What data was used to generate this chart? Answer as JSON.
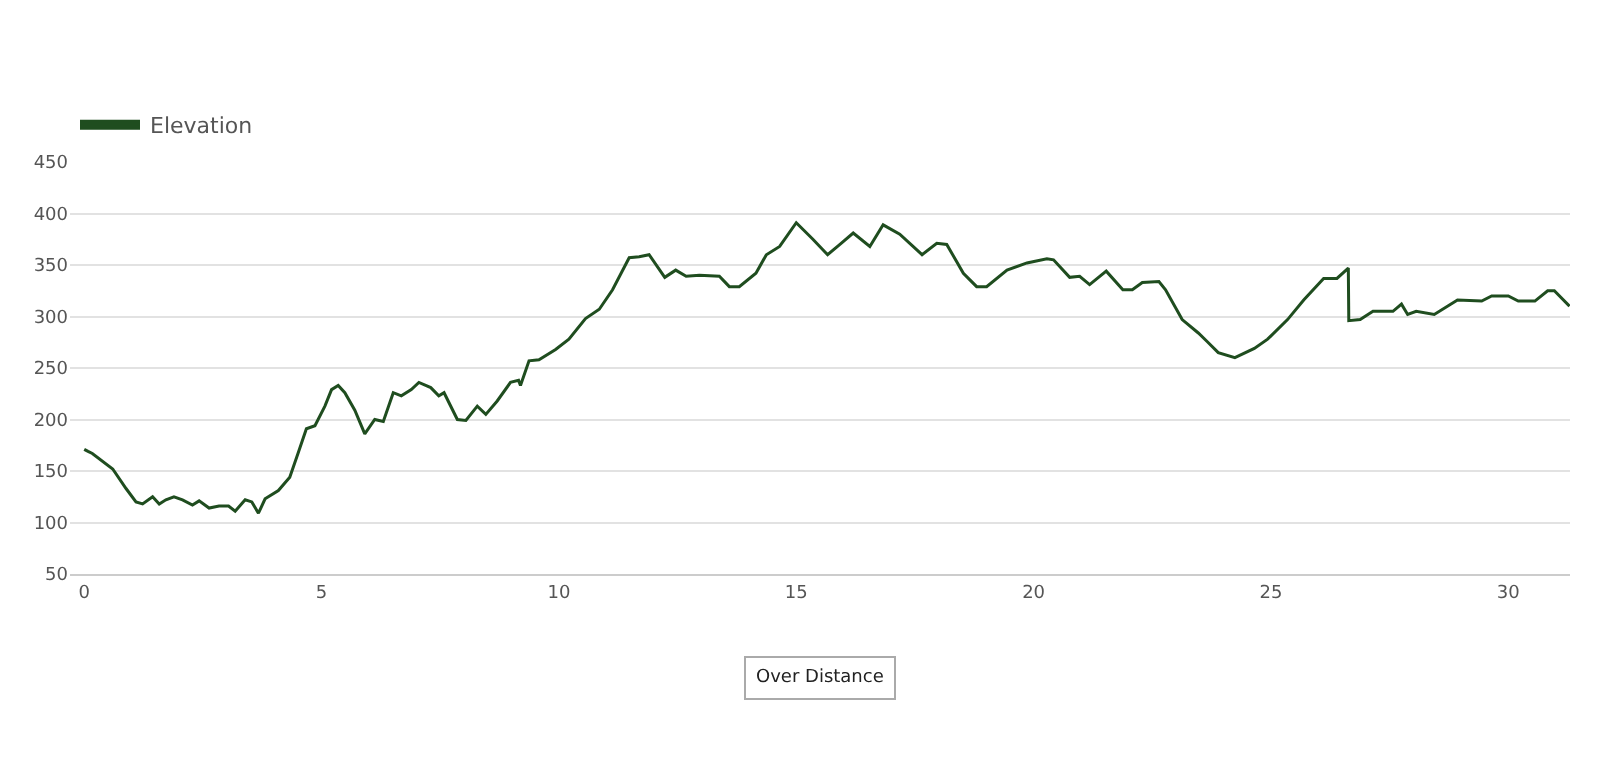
{
  "chart_data": {
    "type": "line",
    "x": [
      0,
      0.08,
      0.17,
      0.6,
      0.88,
      1.09,
      1.23,
      1.44,
      1.58,
      1.72,
      1.89,
      2.07,
      2.28,
      2.42,
      2.63,
      2.84,
      3.04,
      3.18,
      3.39,
      3.53,
      3.67,
      3.81,
      4.09,
      4.33,
      4.51,
      4.68,
      4.86,
      5.07,
      5.21,
      5.35,
      5.49,
      5.7,
      5.91,
      6.12,
      6.3,
      6.51,
      6.68,
      6.89,
      7.05,
      7.3,
      7.47,
      7.58,
      7.86,
      8.04,
      8.28,
      8.46,
      8.7,
      8.98,
      9.15,
      9.19,
      9.37,
      9.58,
      9.93,
      10.21,
      10.56,
      10.85,
      11.13,
      11.48,
      11.69,
      11.9,
      12.23,
      12.46,
      12.68,
      12.96,
      13.38,
      13.59,
      13.8,
      14.15,
      14.37,
      14.65,
      15.0,
      15.35,
      15.66,
      15.92,
      16.2,
      16.55,
      16.83,
      17.18,
      17.65,
      17.96,
      18.17,
      18.52,
      18.8,
      19.01,
      19.44,
      19.86,
      20.28,
      20.42,
      20.76,
      20.97,
      21.18,
      21.53,
      21.88,
      22.08,
      22.29,
      22.64,
      22.78,
      23.13,
      23.47,
      23.65,
      23.89,
      24.24,
      24.65,
      24.93,
      25.35,
      25.69,
      26.11,
      26.39,
      26.63,
      26.64,
      26.88,
      27.15,
      27.57,
      27.75,
      27.88,
      28.06,
      28.44,
      28.93,
      29.44,
      29.65,
      30.0,
      30.21,
      30.56,
      30.83,
      30.97,
      31.29
    ],
    "series": [
      {
        "name": "Elevation",
        "color": "#1f4d1f",
        "values": [
          171,
          169,
          167,
          152,
          133,
          120,
          118,
          125,
          118,
          122,
          125,
          122,
          117,
          121,
          114,
          116,
          116,
          111,
          122,
          120,
          109,
          123,
          131,
          144,
          168,
          191,
          194,
          213,
          229,
          233,
          226,
          209,
          186,
          200,
          198,
          226,
          223,
          229,
          236,
          231,
          223,
          226,
          200,
          199,
          213,
          205,
          218,
          236,
          238,
          233,
          257,
          258,
          268,
          278,
          298,
          307,
          326,
          357,
          358,
          360,
          338,
          345,
          339,
          340,
          339,
          329,
          329,
          342,
          360,
          368,
          391,
          375,
          360,
          370,
          381,
          368,
          389,
          380,
          360,
          371,
          370,
          342,
          329,
          329,
          345,
          352,
          356,
          355,
          338,
          339,
          331,
          344,
          326,
          326,
          333,
          334,
          326,
          297,
          284,
          276,
          265,
          260,
          269,
          278,
          297,
          316,
          337,
          337,
          347,
          296,
          297,
          305,
          305,
          312,
          302,
          305,
          302,
          316,
          315,
          320,
          320,
          315,
          315,
          325,
          325,
          310
        ]
      }
    ],
    "xlim": [
      -0.3,
      31.3
    ],
    "xticks": [
      0,
      5,
      10,
      15,
      20,
      25,
      30
    ],
    "ylim": [
      50,
      450
    ],
    "yticks": [
      50,
      100,
      150,
      200,
      250,
      300,
      350,
      400,
      450
    ],
    "grid": "y",
    "legend": "top left",
    "marker": "none",
    "line_style": "solid",
    "annotations": [
      "Over Distance"
    ]
  }
}
